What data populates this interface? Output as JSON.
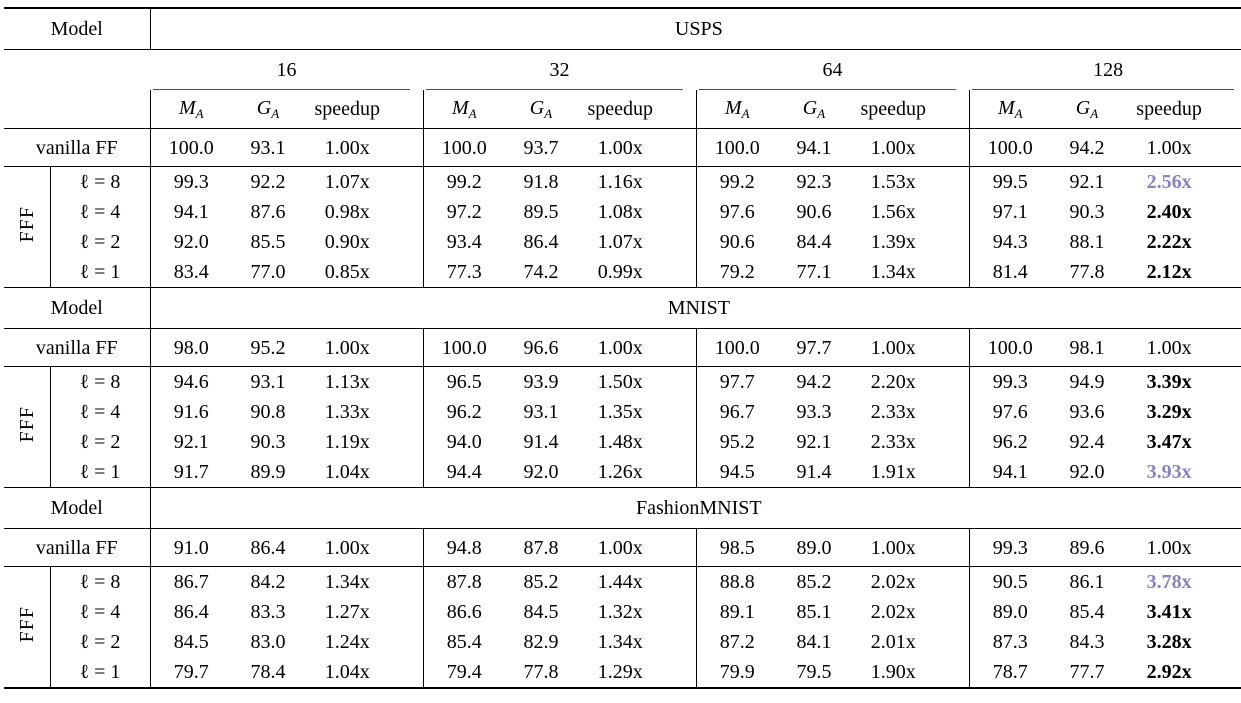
{
  "accent_color": "#8683c8",
  "table": {
    "model_col_header": "Model",
    "group_label": "FFF",
    "vanilla_label": "vanilla FF",
    "width_groups": [
      "16",
      "32",
      "64",
      "128"
    ],
    "metrics": [
      {
        "base": "M",
        "sub": "A"
      },
      {
        "base": "G",
        "sub": "A"
      },
      {
        "base": "speedup"
      }
    ],
    "sections": [
      {
        "dataset": "USPS",
        "has_width_header": true,
        "vanilla": [
          [
            "100.0",
            "93.1",
            "1.00x"
          ],
          [
            "100.0",
            "93.7",
            "1.00x"
          ],
          [
            "100.0",
            "94.1",
            "1.00x"
          ],
          [
            "100.0",
            "94.2",
            "1.00x"
          ]
        ],
        "rows": [
          {
            "label": "ℓ = 8",
            "groups": [
              [
                "99.3",
                "92.2",
                "1.07x"
              ],
              [
                "99.2",
                "91.8",
                "1.16x"
              ],
              [
                "99.2",
                "92.3",
                "1.53x"
              ],
              [
                "99.5",
                "92.1",
                "2.56x"
              ]
            ],
            "speedup_emphasis": [
              null,
              null,
              null,
              "accent"
            ]
          },
          {
            "label": "ℓ = 4",
            "groups": [
              [
                "94.1",
                "87.6",
                "0.98x"
              ],
              [
                "97.2",
                "89.5",
                "1.08x"
              ],
              [
                "97.6",
                "90.6",
                "1.56x"
              ],
              [
                "97.1",
                "90.3",
                "2.40x"
              ]
            ],
            "speedup_emphasis": [
              null,
              null,
              null,
              "bold"
            ]
          },
          {
            "label": "ℓ = 2",
            "groups": [
              [
                "92.0",
                "85.5",
                "0.90x"
              ],
              [
                "93.4",
                "86.4",
                "1.07x"
              ],
              [
                "90.6",
                "84.4",
                "1.39x"
              ],
              [
                "94.3",
                "88.1",
                "2.22x"
              ]
            ],
            "speedup_emphasis": [
              null,
              null,
              null,
              "bold"
            ]
          },
          {
            "label": "ℓ = 1",
            "groups": [
              [
                "83.4",
                "77.0",
                "0.85x"
              ],
              [
                "77.3",
                "74.2",
                "0.99x"
              ],
              [
                "79.2",
                "77.1",
                "1.34x"
              ],
              [
                "81.4",
                "77.8",
                "2.12x"
              ]
            ],
            "speedup_emphasis": [
              null,
              null,
              null,
              "bold"
            ]
          }
        ]
      },
      {
        "dataset": "MNIST",
        "has_width_header": false,
        "vanilla": [
          [
            "98.0",
            "95.2",
            "1.00x"
          ],
          [
            "100.0",
            "96.6",
            "1.00x"
          ],
          [
            "100.0",
            "97.7",
            "1.00x"
          ],
          [
            "100.0",
            "98.1",
            "1.00x"
          ]
        ],
        "rows": [
          {
            "label": "ℓ = 8",
            "groups": [
              [
                "94.6",
                "93.1",
                "1.13x"
              ],
              [
                "96.5",
                "93.9",
                "1.50x"
              ],
              [
                "97.7",
                "94.2",
                "2.20x"
              ],
              [
                "99.3",
                "94.9",
                "3.39x"
              ]
            ],
            "speedup_emphasis": [
              null,
              null,
              null,
              "bold"
            ]
          },
          {
            "label": "ℓ = 4",
            "groups": [
              [
                "91.6",
                "90.8",
                "1.33x"
              ],
              [
                "96.2",
                "93.1",
                "1.35x"
              ],
              [
                "96.7",
                "93.3",
                "2.33x"
              ],
              [
                "97.6",
                "93.6",
                "3.29x"
              ]
            ],
            "speedup_emphasis": [
              null,
              null,
              null,
              "bold"
            ]
          },
          {
            "label": "ℓ = 2",
            "groups": [
              [
                "92.1",
                "90.3",
                "1.19x"
              ],
              [
                "94.0",
                "91.4",
                "1.48x"
              ],
              [
                "95.2",
                "92.1",
                "2.33x"
              ],
              [
                "96.2",
                "92.4",
                "3.47x"
              ]
            ],
            "speedup_emphasis": [
              null,
              null,
              null,
              "bold"
            ]
          },
          {
            "label": "ℓ = 1",
            "groups": [
              [
                "91.7",
                "89.9",
                "1.04x"
              ],
              [
                "94.4",
                "92.0",
                "1.26x"
              ],
              [
                "94.5",
                "91.4",
                "1.91x"
              ],
              [
                "94.1",
                "92.0",
                "3.93x"
              ]
            ],
            "speedup_emphasis": [
              null,
              null,
              null,
              "accent"
            ]
          }
        ]
      },
      {
        "dataset": "FashionMNIST",
        "has_width_header": false,
        "vanilla": [
          [
            "91.0",
            "86.4",
            "1.00x"
          ],
          [
            "94.8",
            "87.8",
            "1.00x"
          ],
          [
            "98.5",
            "89.0",
            "1.00x"
          ],
          [
            "99.3",
            "89.6",
            "1.00x"
          ]
        ],
        "rows": [
          {
            "label": "ℓ = 8",
            "groups": [
              [
                "86.7",
                "84.2",
                "1.34x"
              ],
              [
                "87.8",
                "85.2",
                "1.44x"
              ],
              [
                "88.8",
                "85.2",
                "2.02x"
              ],
              [
                "90.5",
                "86.1",
                "3.78x"
              ]
            ],
            "speedup_emphasis": [
              null,
              null,
              null,
              "accent"
            ]
          },
          {
            "label": "ℓ = 4",
            "groups": [
              [
                "86.4",
                "83.3",
                "1.27x"
              ],
              [
                "86.6",
                "84.5",
                "1.32x"
              ],
              [
                "89.1",
                "85.1",
                "2.02x"
              ],
              [
                "89.0",
                "85.4",
                "3.41x"
              ]
            ],
            "speedup_emphasis": [
              null,
              null,
              null,
              "bold"
            ]
          },
          {
            "label": "ℓ = 2",
            "groups": [
              [
                "84.5",
                "83.0",
                "1.24x"
              ],
              [
                "85.4",
                "82.9",
                "1.34x"
              ],
              [
                "87.2",
                "84.1",
                "2.01x"
              ],
              [
                "87.3",
                "84.3",
                "3.28x"
              ]
            ],
            "speedup_emphasis": [
              null,
              null,
              null,
              "bold"
            ]
          },
          {
            "label": "ℓ = 1",
            "groups": [
              [
                "79.7",
                "78.4",
                "1.04x"
              ],
              [
                "79.4",
                "77.8",
                "1.29x"
              ],
              [
                "79.9",
                "79.5",
                "1.90x"
              ],
              [
                "78.7",
                "77.7",
                "2.92x"
              ]
            ],
            "speedup_emphasis": [
              null,
              null,
              null,
              "bold"
            ]
          }
        ]
      }
    ]
  }
}
